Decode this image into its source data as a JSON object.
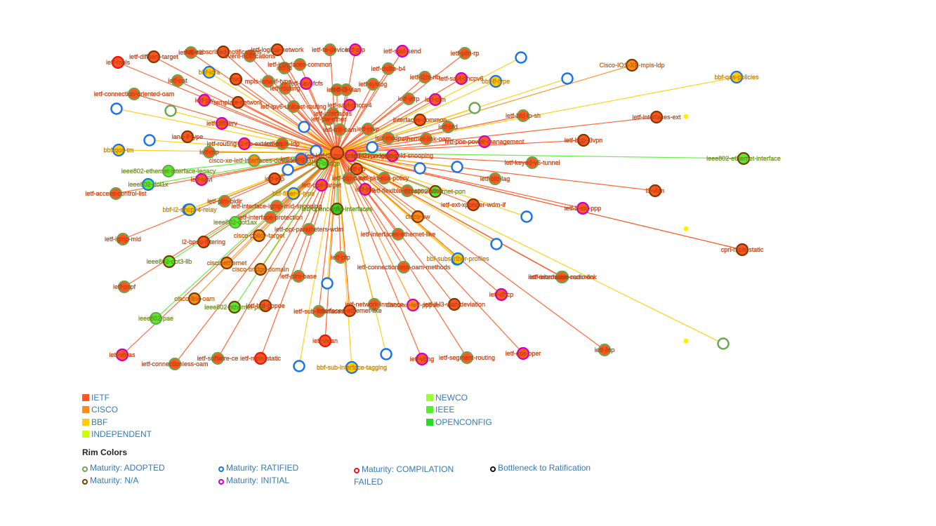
{
  "colors": {
    "IETF": "#ff5722",
    "CISCO": "#ff8c1a",
    "BBF": "#ffcc00",
    "INDEPENDENT": "#ccff00",
    "NEWCO": "#99ff33",
    "IEEE": "#55ee33",
    "OPENCONFIG": "#22dd22"
  },
  "rimColors": {
    "ADOPTED": "#6aa84f",
    "RATIFIED": "#1a73e8",
    "COMPILATION_FAILED": "#ee1111",
    "BOTTLENECK": "#111111",
    "NA": "#7a3b00",
    "INITIAL": "#cc00cc"
  },
  "legend": {
    "orgs": [
      "IETF",
      "CISCO",
      "BBF",
      "INDEPENDENT",
      "NEWCO",
      "IEEE",
      "OPENCONFIG"
    ],
    "rim_title": "Rim Colors",
    "rims": [
      {
        "label": "Maturity: ADOPTED",
        "color": "#6aa84f"
      },
      {
        "label": "Maturity: RATIFIED",
        "color": "#1a73e8"
      },
      {
        "label": "Maturity: COMPILATION FAILED",
        "color": "#ee1111"
      },
      {
        "label": "Bottleneck to Ratification",
        "color": "#111111"
      },
      {
        "label": "Maturity: N/A",
        "color": "#7a3b00"
      },
      {
        "label": "Maturity: INITIAL",
        "color": "#cc00cc"
      }
    ]
  },
  "graph": {
    "nodes": [
      {
        "label": "ietf-mpls",
        "org": "IETF",
        "rim": "COMPILATION_FAILED"
      },
      {
        "label": "ietf-diffserv-target",
        "org": "IETF",
        "rim": "NA"
      },
      {
        "label": "ietf-fb-rib",
        "org": "IETF",
        "rim": "ADOPTED"
      },
      {
        "label": "ietf-subscribed-notifications",
        "org": "IETF",
        "rim": "NA"
      },
      {
        "label": "event-notifications",
        "org": "IETF",
        "rim": "ADOPTED"
      },
      {
        "label": "ietf-logical-network",
        "org": "IETF",
        "rim": "NA"
      },
      {
        "label": "ietf-te-device",
        "org": "IETF",
        "rim": "ADOPTED"
      },
      {
        "label": "ietf-arp",
        "org": "IETF",
        "rim": "INITIAL"
      },
      {
        "label": "ietf-savi-send",
        "org": "IETF",
        "rim": "INITIAL"
      },
      {
        "label": "ietf-pim-rp",
        "org": "IETF",
        "rim": "ADOPTED"
      },
      {
        "label": "Cisco-IOS-XE-mpls-ldp",
        "org": "CISCO",
        "rim": "NA"
      },
      {
        "label": "bbf-qos-policies",
        "org": "BBF",
        "rim": "RATIFIED"
      },
      {
        "label": "ietf-nat",
        "org": "IETF",
        "rim": "ADOPTED"
      },
      {
        "label": "bbf-ldra",
        "org": "BBF",
        "rim": "RATIFIED"
      },
      {
        "label": "nvo",
        "org": "IETF",
        "rim": "NA"
      },
      {
        "label": "mpls-iana-if-type",
        "org": "IETF",
        "rim": "ADOPTED"
      },
      {
        "label": "ietf-interfaces-common",
        "org": "IETF",
        "rim": "ADOPTED"
      },
      {
        "label": "ietf-dslite-b4",
        "org": "IETF",
        "rim": "ADOPTED"
      },
      {
        "label": "ietf-i2rs-rib",
        "org": "IETF",
        "rim": "ADOPTED"
      },
      {
        "label": "ietf-savi-dhcpv6",
        "org": "IETF",
        "rim": "INITIAL"
      },
      {
        "label": "bbf-if-type",
        "org": "BBF",
        "rim": "RATIFIED"
      },
      {
        "label": "ietf-connection-oriented-oam",
        "org": "IETF",
        "rim": "ADOPTED"
      },
      {
        "label": "ietf-routing",
        "org": "IETF",
        "rim": "ADOPTED"
      },
      {
        "label": "ietf-savi-fcfs",
        "org": "IETF",
        "rim": "INITIAL"
      },
      {
        "label": "ietf-syslog",
        "org": "IETF",
        "rim": "ADOPTED"
      },
      {
        "label": "ietf-vrrp",
        "org": "IETF",
        "rim": "ADOPTED"
      },
      {
        "label": "ietf-cfm",
        "org": "IETF",
        "rim": "INITIAL"
      },
      {
        "label": "ietf-pw",
        "org": "IETF",
        "rim": "INITIAL"
      },
      {
        "label": "template-network",
        "org": "IETF",
        "rim": "NA"
      },
      {
        "label": "ietf-ipv6-unicast-routing",
        "org": "IETF",
        "rim": "ADOPTED"
      },
      {
        "label": "ietf-bfd-ip-sh",
        "org": "IETF",
        "rim": "ADOPTED"
      },
      {
        "label": "ietf-interfaces-ext",
        "org": "IETF",
        "rim": "NA"
      },
      {
        "label": "ietf-diffserv",
        "org": "IETF",
        "rim": "INITIAL"
      },
      {
        "label": "ietf-rsvp",
        "org": "IETF",
        "rim": "ADOPTED"
      },
      {
        "label": "ietf-msdp",
        "org": "IETF",
        "rim": "ADOPTED"
      },
      {
        "label": "interfaces-common",
        "org": "IETF",
        "rim": "NA"
      },
      {
        "label": "ietf-bfd",
        "org": "IETF",
        "rim": "ADOPTED"
      },
      {
        "label": "iana-if-type",
        "org": "IETF",
        "rim": "NA"
      },
      {
        "label": "ietf-ntp",
        "org": "IETF",
        "rim": "ADOPTED"
      },
      {
        "label": "ietf-routing-l2-rib-extension",
        "org": "IETF",
        "rim": "INITIAL"
      },
      {
        "label": "ietf-trill-oam",
        "org": "IETF",
        "rim": "ADOPTED"
      },
      {
        "label": "ietf-poe-power-management",
        "org": "IETF",
        "rim": "INITIAL"
      },
      {
        "label": "ietf-bgp-l3vpn",
        "org": "IETF",
        "rim": "NA"
      },
      {
        "label": "bbf-qos-tm",
        "org": "BBF",
        "rim": "RATIFIED"
      },
      {
        "label": "ietf-l2vpn-igmp-mld-snooping",
        "org": "IETF",
        "rim": "INITIAL"
      },
      {
        "label": "ieee802-ethernet-interface",
        "org": "IEEE",
        "rim": "NA"
      },
      {
        "label": "cisco-xe-ietf-interfaces-deviation",
        "org": "CISCO",
        "rim": "ADOPTED"
      },
      {
        "label": "ietf-yang-types",
        "org": "IETF",
        "rim": "RATIFIED"
      },
      {
        "label": "dot1q-bridge",
        "org": "IEEE",
        "rim": "NA"
      },
      {
        "label": "ieee802-ethernet-interface-legacy",
        "org": "IEEE",
        "rim": "ADOPTED"
      },
      {
        "label": "ietf-np",
        "org": "IETF",
        "rim": "NA"
      },
      {
        "label": "ietf-keyed-v6-tunnel",
        "org": "IETF",
        "rim": "ADOPTED"
      },
      {
        "label": "ietf-bfd-lag",
        "org": "IETF",
        "rim": "ADOPTED"
      },
      {
        "label": "ieee802-dot1x",
        "org": "IEEE",
        "rim": "RATIFIED"
      },
      {
        "label": "ietf-savi",
        "org": "IETF",
        "rim": "INITIAL"
      },
      {
        "label": "ietf-erp",
        "org": "IETF",
        "rim": "NA"
      },
      {
        "label": "ietf-qos-target",
        "org": "IETF",
        "rim": "INITIAL"
      },
      {
        "label": "ietf-isis",
        "org": "IETF",
        "rim": "INITIAL"
      },
      {
        "label": "ietf-flexible-encapsulation",
        "org": "IETF",
        "rim": "ADOPTED"
      },
      {
        "label": "ieee802-ethernet-pon",
        "org": "IEEE",
        "rim": "NA"
      },
      {
        "label": "ietf-access-control-list",
        "org": "IETF",
        "rim": "ADOPTED"
      },
      {
        "label": "l3-vlan",
        "org": "IETF",
        "rim": "NA"
      },
      {
        "label": "ietf-pim-bidir",
        "org": "IETF",
        "rim": "ADOPTED"
      },
      {
        "label": "bbf-fiber-if-type",
        "org": "BBF",
        "rim": "RATIFIED"
      },
      {
        "label": "ietf-pkt-eca-policy",
        "org": "IETF",
        "rim": "ADOPTED"
      },
      {
        "label": "ietf-ext-xponder-wdm-if",
        "org": "IETF",
        "rim": "NA"
      },
      {
        "label": "ietf-if-ext-ppp",
        "org": "IETF",
        "rim": "INITIAL"
      },
      {
        "label": "ietf-interface-igmp-mld-snooping",
        "org": "IETF",
        "rim": "ADOPTED"
      },
      {
        "label": "bbf-l2-dhcpv4-relay",
        "org": "BBF",
        "rim": "RATIFIED"
      },
      {
        "label": "ietf-openconfig-interfaces",
        "org": "OPENCONFIG",
        "rim": "NA"
      },
      {
        "label": "cisco-pw",
        "org": "CISCO",
        "rim": "NA"
      },
      {
        "label": "ietf-interface-protection",
        "org": "IETF",
        "rim": "ADOPTED"
      },
      {
        "label": "ieee802-dot1ax",
        "org": "IEEE",
        "rim": "ADOPTED"
      },
      {
        "label": "ietf-igmp-mld",
        "org": "IETF",
        "rim": "ADOPTED"
      },
      {
        "label": "cisco-policy-target",
        "org": "CISCO",
        "rim": "NA"
      },
      {
        "label": "ietf-opt-parameters-wdm",
        "org": "IETF",
        "rim": "ADOPTED"
      },
      {
        "label": "ietf-interfaces-ethernet-like",
        "org": "IETF",
        "rim": "ADOPTED"
      },
      {
        "label": "cpri-mpls-static",
        "org": "IETF",
        "rim": "NA"
      },
      {
        "label": "l2-bpdu-filtering",
        "org": "IETF",
        "rim": "NA"
      },
      {
        "label": "ietf-ptp",
        "org": "IETF",
        "rim": "ADOPTED"
      },
      {
        "label": "bbf-subscriber-profiles",
        "org": "BBF",
        "rim": "RATIFIED"
      },
      {
        "label": "ieee802-dot3-llb",
        "org": "IEEE",
        "rim": "NA"
      },
      {
        "label": "cisco-ethernet",
        "org": "CISCO",
        "rim": "NA"
      },
      {
        "label": "ietf-connectionless-oam-methods",
        "org": "IETF",
        "rim": "ADOPTED"
      },
      {
        "label": "ietf-microwave-radio-link",
        "org": "IETF",
        "rim": "ADOPTED"
      },
      {
        "label": "ietf-interfaces-common",
        "org": "IETF",
        "rim": "ADOPTED"
      },
      {
        "label": "cisco-bridge-domain",
        "org": "CISCO",
        "rim": "NA"
      },
      {
        "label": "ietf-pim-base",
        "org": "IETF",
        "rim": "ADOPTED"
      },
      {
        "label": "ietf-ospf",
        "org": "IETF",
        "rim": "ADOPTED"
      },
      {
        "label": "ietf-dhcp",
        "org": "IETF",
        "rim": "INITIAL"
      },
      {
        "label": "cisco-link-oam",
        "org": "CISCO",
        "rim": "NA"
      },
      {
        "label": "ieee802-ethernet-pse",
        "org": "IEEE",
        "rim": "NA"
      },
      {
        "label": "ietf-network-instance",
        "org": "IETF",
        "rim": "ADOPTED"
      },
      {
        "label": "ietf-if-l3-vlan-deviation",
        "org": "IETF",
        "rim": "NA"
      },
      {
        "label": "cisco-xe-ietf-pppoe",
        "org": "CISCO",
        "rim": "INITIAL"
      },
      {
        "label": "interfaces-ethernet-like",
        "org": "IETF",
        "rim": "NA"
      },
      {
        "label": "ieee802-pae",
        "org": "IEEE",
        "rim": "ADOPTED"
      },
      {
        "label": "ietf-vxlan",
        "org": "IETF",
        "rim": "COMPILATION_FAILED"
      },
      {
        "label": "ietf-lisp",
        "org": "IETF",
        "rim": "ADOPTED"
      },
      {
        "label": "ietf-vbras",
        "org": "IETF",
        "rim": "INITIAL"
      },
      {
        "label": "ietf-softwire-ce",
        "org": "IETF",
        "rim": "ADOPTED"
      },
      {
        "label": "ietf-mpls-static",
        "org": "IETF",
        "rim": "COMPILATION_FAILED"
      },
      {
        "label": "ietf-qos-oper",
        "org": "IETF",
        "rim": "INITIAL"
      },
      {
        "label": "ietf-vbng",
        "org": "IETF",
        "rim": "INITIAL"
      },
      {
        "label": "ietf-segment-routing",
        "org": "IETF",
        "rim": "ADOPTED"
      },
      {
        "label": "ietf-connectionless-oam",
        "org": "IETF",
        "rim": "ADOPTED"
      },
      {
        "label": "bbf-sub-interface-tagging",
        "org": "BBF",
        "rim": "RATIFIED"
      },
      {
        "label": "ietf-ip",
        "org": "IETF",
        "rim": "ADOPTED"
      },
      {
        "label": "ietf-l3-vlan",
        "org": "IETF",
        "rim": "ADOPTED"
      },
      {
        "label": "ietf-if-l3",
        "org": "IETF",
        "rim": "ADOPTED"
      },
      {
        "label": "ietf-ietf-l2vpn-igmp-mld-snooping",
        "org": "IETF",
        "rim": "INITIAL"
      },
      {
        "label": "ietf-plp-data",
        "org": "IETF",
        "rim": "ADOPTED"
      },
      {
        "label": "ethernet-link-oam",
        "org": "IETF",
        "rim": "ADOPTED"
      },
      {
        "label": "ietf-interfaces",
        "org": "IETF",
        "rim": "ADOPTED"
      },
      {
        "label": "ietf-pw-ether",
        "org": "IETF",
        "rim": "ADOPTED"
      },
      {
        "label": "ietf-savi-dhcpv4",
        "org": "IETF",
        "rim": "INITIAL"
      },
      {
        "label": "ietf-mpls-ldp",
        "org": "IETF",
        "rim": "ADOPTED"
      },
      {
        "label": "ietf-bbf-pppoe",
        "org": "IETF",
        "rim": "NA"
      },
      {
        "label": "ietf-sub-interfaces",
        "org": "IETF",
        "rim": "ADOPTED"
      }
    ]
  }
}
